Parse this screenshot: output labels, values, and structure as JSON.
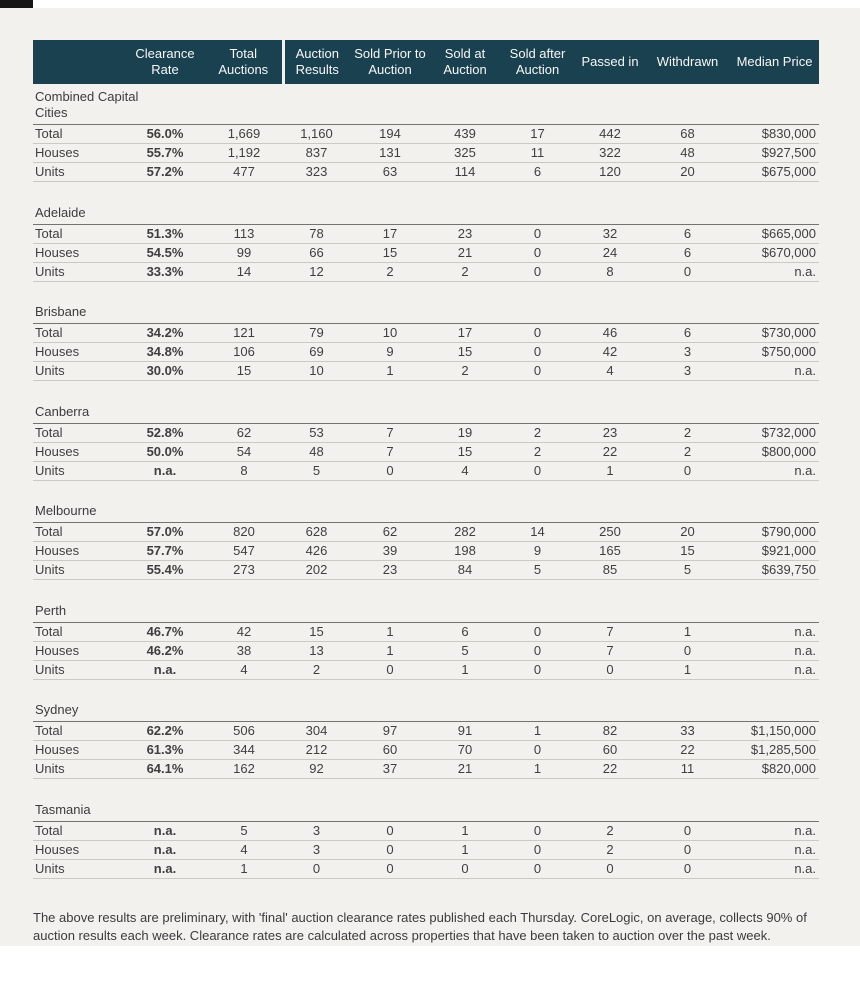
{
  "colors": {
    "page_background": "#f2f1ee",
    "header_background": "#1a4150",
    "header_text": "#f7f7f7",
    "body_text": "#3f3f3f",
    "row_divider": "#cbc9c3",
    "section_top_border": "#73736f"
  },
  "footnote": "The above results are preliminary, with 'final' auction clearance rates published each Thursday. CoreLogic, on average, collects 90% of auction results each week. Clearance rates are calculated across properties that have been taken to auction over the past week.",
  "chart_data": {
    "type": "table",
    "columns": [
      "",
      "Clearance Rate",
      "Total Auctions",
      "Auction Results",
      "Sold Prior to Auction",
      "Sold at Auction",
      "Sold after Auction",
      "Passed in",
      "Withdrawn",
      "Median Price"
    ],
    "sections": [
      {
        "title": "Combined Capital Cities",
        "rows": [
          {
            "label": "Total",
            "values": [
              "56.0%",
              "1,669",
              "1,160",
              "194",
              "439",
              "17",
              "442",
              "68",
              "$830,000"
            ]
          },
          {
            "label": "Houses",
            "values": [
              "55.7%",
              "1,192",
              "837",
              "131",
              "325",
              "11",
              "322",
              "48",
              "$927,500"
            ]
          },
          {
            "label": "Units",
            "values": [
              "57.2%",
              "477",
              "323",
              "63",
              "114",
              "6",
              "120",
              "20",
              "$675,000"
            ]
          }
        ]
      },
      {
        "title": "Adelaide",
        "rows": [
          {
            "label": "Total",
            "values": [
              "51.3%",
              "113",
              "78",
              "17",
              "23",
              "0",
              "32",
              "6",
              "$665,000"
            ]
          },
          {
            "label": "Houses",
            "values": [
              "54.5%",
              "99",
              "66",
              "15",
              "21",
              "0",
              "24",
              "6",
              "$670,000"
            ]
          },
          {
            "label": "Units",
            "values": [
              "33.3%",
              "14",
              "12",
              "2",
              "2",
              "0",
              "8",
              "0",
              "n.a."
            ]
          }
        ]
      },
      {
        "title": "Brisbane",
        "rows": [
          {
            "label": "Total",
            "values": [
              "34.2%",
              "121",
              "79",
              "10",
              "17",
              "0",
              "46",
              "6",
              "$730,000"
            ]
          },
          {
            "label": "Houses",
            "values": [
              "34.8%",
              "106",
              "69",
              "9",
              "15",
              "0",
              "42",
              "3",
              "$750,000"
            ]
          },
          {
            "label": "Units",
            "values": [
              "30.0%",
              "15",
              "10",
              "1",
              "2",
              "0",
              "4",
              "3",
              "n.a."
            ]
          }
        ]
      },
      {
        "title": "Canberra",
        "rows": [
          {
            "label": "Total",
            "values": [
              "52.8%",
              "62",
              "53",
              "7",
              "19",
              "2",
              "23",
              "2",
              "$732,000"
            ]
          },
          {
            "label": "Houses",
            "values": [
              "50.0%",
              "54",
              "48",
              "7",
              "15",
              "2",
              "22",
              "2",
              "$800,000"
            ]
          },
          {
            "label": "Units",
            "values": [
              "n.a.",
              "8",
              "5",
              "0",
              "4",
              "0",
              "1",
              "0",
              "n.a."
            ]
          }
        ]
      },
      {
        "title": "Melbourne",
        "rows": [
          {
            "label": "Total",
            "values": [
              "57.0%",
              "820",
              "628",
              "62",
              "282",
              "14",
              "250",
              "20",
              "$790,000"
            ]
          },
          {
            "label": "Houses",
            "values": [
              "57.7%",
              "547",
              "426",
              "39",
              "198",
              "9",
              "165",
              "15",
              "$921,000"
            ]
          },
          {
            "label": "Units",
            "values": [
              "55.4%",
              "273",
              "202",
              "23",
              "84",
              "5",
              "85",
              "5",
              "$639,750"
            ]
          }
        ]
      },
      {
        "title": "Perth",
        "rows": [
          {
            "label": "Total",
            "values": [
              "46.7%",
              "42",
              "15",
              "1",
              "6",
              "0",
              "7",
              "1",
              "n.a."
            ]
          },
          {
            "label": "Houses",
            "values": [
              "46.2%",
              "38",
              "13",
              "1",
              "5",
              "0",
              "7",
              "0",
              "n.a."
            ]
          },
          {
            "label": "Units",
            "values": [
              "n.a.",
              "4",
              "2",
              "0",
              "1",
              "0",
              "0",
              "1",
              "n.a."
            ]
          }
        ]
      },
      {
        "title": "Sydney",
        "rows": [
          {
            "label": "Total",
            "values": [
              "62.2%",
              "506",
              "304",
              "97",
              "91",
              "1",
              "82",
              "33",
              "$1,150,000"
            ]
          },
          {
            "label": "Houses",
            "values": [
              "61.3%",
              "344",
              "212",
              "60",
              "70",
              "0",
              "60",
              "22",
              "$1,285,500"
            ]
          },
          {
            "label": "Units",
            "values": [
              "64.1%",
              "162",
              "92",
              "37",
              "21",
              "1",
              "22",
              "11",
              "$820,000"
            ]
          }
        ]
      },
      {
        "title": "Tasmania",
        "rows": [
          {
            "label": "Total",
            "values": [
              "n.a.",
              "5",
              "3",
              "0",
              "1",
              "0",
              "2",
              "0",
              "n.a."
            ]
          },
          {
            "label": "Houses",
            "values": [
              "n.a.",
              "4",
              "3",
              "0",
              "1",
              "0",
              "2",
              "0",
              "n.a."
            ]
          },
          {
            "label": "Units",
            "values": [
              "n.a.",
              "1",
              "0",
              "0",
              "0",
              "0",
              "0",
              "0",
              "n.a."
            ]
          }
        ]
      }
    ]
  }
}
